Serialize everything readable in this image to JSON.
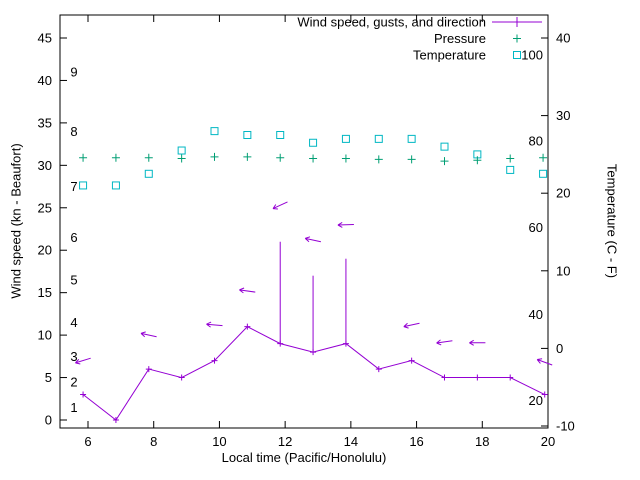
{
  "chart_data": {
    "type": "line",
    "title": "",
    "xlabel": "Local time (Pacific/Honolulu)",
    "ylabel_left": "Wind speed (kn - Beaufort)",
    "ylabel_right": "Temperature (C - F)",
    "grid": false,
    "legend_position": "top-right-inside",
    "x_range": [
      5.15,
      20
    ],
    "x_ticks": [
      6,
      8,
      10,
      12,
      14,
      16,
      18,
      20
    ],
    "y_left_range": [
      0,
      45
    ],
    "y_left_ticks": [
      0,
      5,
      10,
      15,
      20,
      25,
      30,
      35,
      40,
      45
    ],
    "y_right_range": [
      -10,
      40
    ],
    "y_right_ticks": [
      -10,
      0,
      10,
      20,
      30,
      40
    ],
    "beaufort_labels": [
      {
        "label": "1",
        "kn": 1.5
      },
      {
        "label": "2",
        "kn": 4.5
      },
      {
        "label": "3",
        "kn": 7.5
      },
      {
        "label": "4",
        "kn": 11.5
      },
      {
        "label": "5",
        "kn": 16.5
      },
      {
        "label": "6",
        "kn": 21.5
      },
      {
        "label": "7",
        "kn": 27.5
      },
      {
        "label": "8",
        "kn": 34
      },
      {
        "label": "9",
        "kn": 41
      }
    ],
    "fahrenheit_labels": [
      {
        "label": "100",
        "c": 37.8
      },
      {
        "label": "80",
        "c": 26.7
      },
      {
        "label": "60",
        "c": 15.6
      },
      {
        "label": "40",
        "c": 4.4
      },
      {
        "label": "20",
        "c": -6.7
      }
    ],
    "legend": [
      {
        "label": "Wind speed, gusts, and direction",
        "series": "wind"
      },
      {
        "label": "Pressure",
        "series": "pressure"
      },
      {
        "label": "Temperature",
        "series": "temperature"
      }
    ],
    "series": {
      "wind": {
        "name": "Wind speed, gusts, and direction",
        "color": "#9400d3",
        "x": [
          5.85,
          6.85,
          7.85,
          8.85,
          9.85,
          10.85,
          11.85,
          12.85,
          13.85,
          14.85,
          15.85,
          16.85,
          17.85,
          18.85,
          19.9
        ],
        "speed": [
          3,
          0,
          6,
          5,
          7,
          11,
          9,
          8,
          9,
          6,
          7,
          5,
          5,
          5,
          3
        ],
        "gust": [
          3,
          0,
          6,
          5,
          7,
          11,
          21,
          17,
          19,
          6,
          7,
          5,
          5,
          5,
          3
        ],
        "arrows": [
          {
            "x": 5.85,
            "y": 7,
            "angle_deg": 197
          },
          {
            "x": 7.85,
            "y": 10,
            "angle_deg": 168
          },
          {
            "x": 9.85,
            "y": 11.2,
            "angle_deg": 175
          },
          {
            "x": 10.85,
            "y": 15.2,
            "angle_deg": 172
          },
          {
            "x": 11.85,
            "y": 25.3,
            "angle_deg": 205
          },
          {
            "x": 12.85,
            "y": 21.2,
            "angle_deg": 168
          },
          {
            "x": 13.85,
            "y": 23,
            "angle_deg": 182
          },
          {
            "x": 15.85,
            "y": 11.2,
            "angle_deg": 192
          },
          {
            "x": 16.85,
            "y": 9.2,
            "angle_deg": 188
          },
          {
            "x": 17.85,
            "y": 9.1,
            "angle_deg": 180
          },
          {
            "x": 19.9,
            "y": 6.8,
            "angle_deg": 160
          }
        ]
      },
      "pressure": {
        "name": "Pressure",
        "color": "#009e73",
        "x": [
          5.85,
          6.85,
          7.85,
          8.85,
          9.85,
          10.85,
          11.85,
          12.85,
          13.85,
          14.85,
          15.85,
          16.85,
          17.85,
          18.85,
          19.85
        ],
        "values": [
          30.9,
          30.9,
          30.9,
          30.8,
          31,
          31,
          30.9,
          30.8,
          30.8,
          30.7,
          30.7,
          30.5,
          30.6,
          30.8,
          30.9
        ]
      },
      "temperature": {
        "name": "Temperature",
        "color": "#00b7c3",
        "x": [
          5.85,
          6.85,
          7.85,
          8.85,
          9.85,
          10.85,
          11.85,
          12.85,
          13.85,
          14.85,
          15.85,
          16.85,
          17.85,
          18.85,
          19.85
        ],
        "values": [
          21,
          21,
          22.5,
          25.5,
          28,
          27.5,
          27.5,
          26.5,
          27,
          27,
          27,
          26,
          25,
          23,
          22.5
        ]
      }
    }
  }
}
